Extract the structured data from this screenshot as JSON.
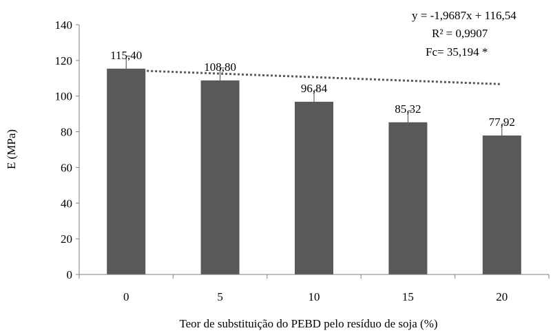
{
  "chart_data": {
    "type": "bar",
    "categories": [
      "0",
      "5",
      "10",
      "15",
      "20"
    ],
    "values": [
      115.4,
      108.8,
      96.84,
      85.32,
      77.92
    ],
    "value_labels": [
      "115,40",
      "108,80",
      "96,84",
      "85,32",
      "77,92"
    ],
    "error_plus": [
      7,
      7,
      6.5,
      6.5,
      6.5
    ],
    "ylabel": "E (MPa)",
    "xlabel": "Teor de substituição  do PEBD  pelo resíduo de soja (%)",
    "ylim": [
      0,
      140
    ],
    "yticks": [
      0,
      20,
      40,
      60,
      80,
      100,
      120,
      140
    ],
    "ytick_labels": [
      "0",
      "20",
      "40",
      "60",
      "80",
      "100",
      "120",
      "140"
    ],
    "grid": false,
    "legend": "none",
    "bar_color": "#595959",
    "trendline": {
      "type": "linear",
      "style": "dotted",
      "color": "#595959",
      "slope": -1.9687,
      "intercept": 116.54
    },
    "annotations": [
      "y = -1,9687x + 116,54",
      "R² = 0,9907",
      "Fc=  35,194 *"
    ]
  }
}
